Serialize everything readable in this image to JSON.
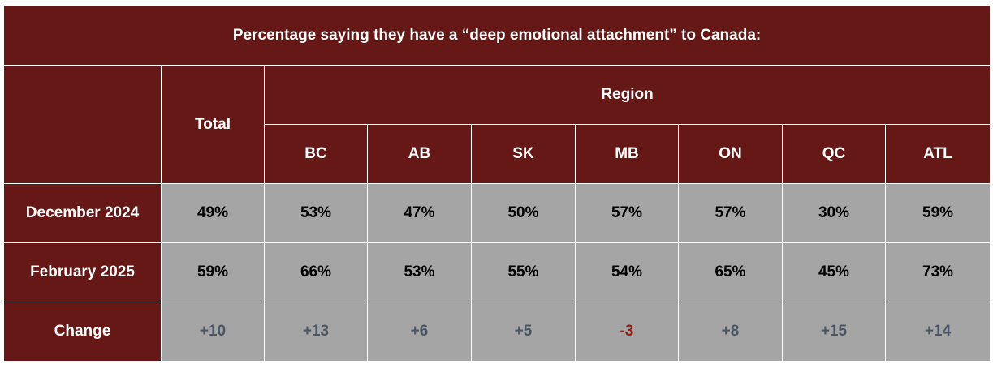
{
  "title": "Percentage saying they have a “deep emotional attachment” to Canada:",
  "header": {
    "total": "Total",
    "region": "Region",
    "regions": [
      "BC",
      "AB",
      "SK",
      "MB",
      "ON",
      "QC",
      "ATL"
    ]
  },
  "rows": [
    {
      "label": "December 2024",
      "total": "49%",
      "values": [
        "53%",
        "47%",
        "50%",
        "57%",
        "57%",
        "30%",
        "59%"
      ]
    },
    {
      "label": "February 2025",
      "total": "59%",
      "values": [
        "66%",
        "53%",
        "55%",
        "54%",
        "65%",
        "45%",
        "73%"
      ]
    }
  ],
  "change": {
    "label": "Change",
    "total": "+10",
    "values": [
      "+13",
      "+6",
      "+5",
      "-3",
      "+8",
      "+15",
      "+14"
    ]
  },
  "colors": {
    "header_bg": "#661816",
    "cell_bg": "#a5a5a5",
    "positive_change": "#4a5566",
    "negative_change": "#8e1c12"
  }
}
